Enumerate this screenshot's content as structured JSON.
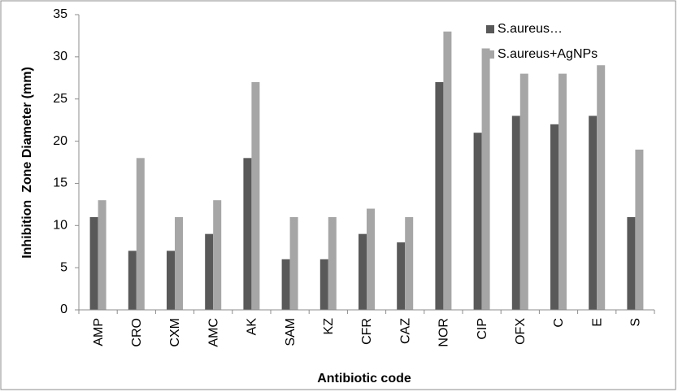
{
  "chart_data": {
    "type": "bar",
    "x_label": "Antibiotic code",
    "y_label": "Inhibition  Zone Diameter (mm)",
    "categories": [
      "AMP",
      "CRO",
      "CXM",
      "AMC",
      "AK",
      "SAM",
      "KZ",
      "CFR",
      "CAZ",
      "NOR",
      "CIP",
      "OFX",
      "C",
      "E",
      "S"
    ],
    "series": [
      {
        "name": "S.aureus…",
        "color": "#595959",
        "values": [
          11,
          7,
          7,
          9,
          18,
          6,
          6,
          9,
          8,
          27,
          21,
          23,
          22,
          23,
          11
        ]
      },
      {
        "name": "S.aureus+AgNPs",
        "color": "#a6a6a6",
        "values": [
          13,
          18,
          11,
          13,
          27,
          11,
          11,
          12,
          11,
          33,
          31,
          28,
          28,
          29,
          19
        ]
      }
    ],
    "ylim": [
      0,
      35
    ],
    "yticks": [
      0,
      5,
      10,
      15,
      20,
      25,
      30,
      35
    ],
    "grid": false,
    "legend": "top-right"
  }
}
